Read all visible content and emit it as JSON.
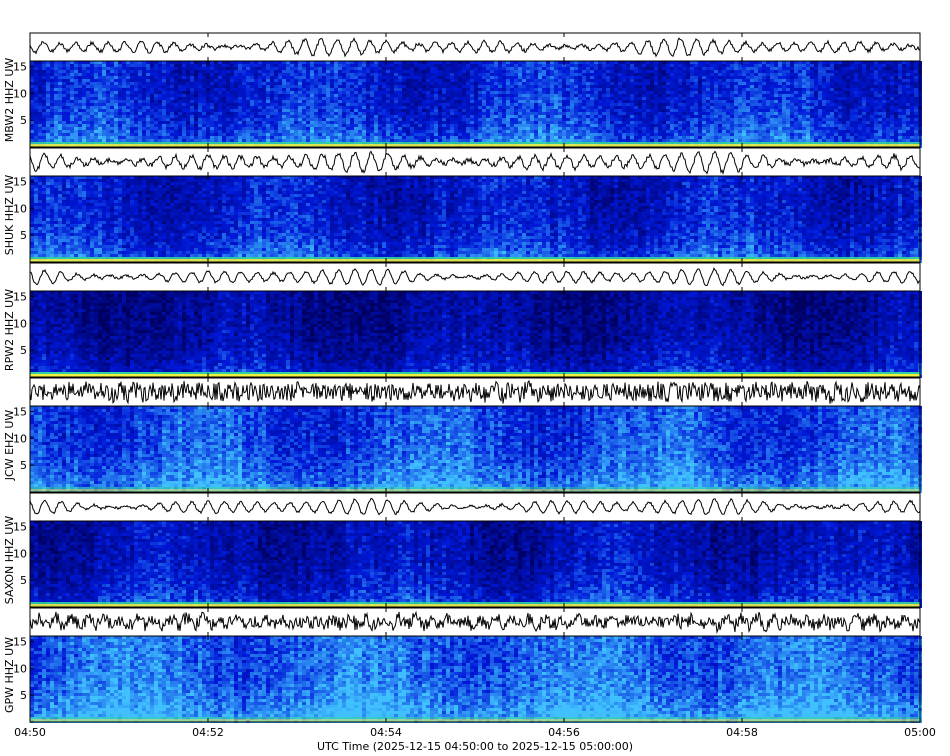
{
  "chart_data": {
    "type": "heatmap",
    "kind": "seismic helicorder spectrogram panels",
    "time_axis": {
      "ticks": [
        "04:50",
        "04:52",
        "04:54",
        "04:56",
        "04:58",
        "05:00"
      ],
      "label": "UTC Time (2025-12-15 04:50:00 to 2025-12-15 05:00:00)",
      "start_minutes": 0,
      "end_minutes": 10
    },
    "frequency_axis": {
      "ticks": [
        "15",
        "10",
        "5"
      ],
      "tick_values": [
        15,
        10,
        5
      ],
      "range": [
        0,
        16
      ]
    },
    "colors": {
      "base_dark": "#000060",
      "base_blue": "#0018d8",
      "high_cyan": "#40c0ff",
      "band_yellow": "#f0f040",
      "band_green": "#30d0a0",
      "trace": "#000000"
    },
    "stations": [
      {
        "label": "MBW2 HHZ UW",
        "intensity": 0.48,
        "trace_amp": 0.7,
        "trace_noise": 0.15,
        "band": 0.9
      },
      {
        "label": "SHUK HHZ UW",
        "intensity": 0.42,
        "trace_amp": 0.85,
        "trace_noise": 0.2,
        "band": 0.9
      },
      {
        "label": "RPW2 HHZ UW",
        "intensity": 0.22,
        "trace_amp": 0.7,
        "trace_noise": 0.1,
        "band": 1.0
      },
      {
        "label": "JCW EHZ UW",
        "intensity": 0.62,
        "trace_amp": 0.25,
        "trace_noise": 0.75,
        "band": 0.5
      },
      {
        "label": "SAXON HHZ UW",
        "intensity": 0.32,
        "trace_amp": 0.7,
        "trace_noise": 0.1,
        "band": 0.9
      },
      {
        "label": "GPW HHZ UW",
        "intensity": 0.72,
        "trace_amp": 0.4,
        "trace_noise": 0.55,
        "band": 0.5
      }
    ]
  }
}
